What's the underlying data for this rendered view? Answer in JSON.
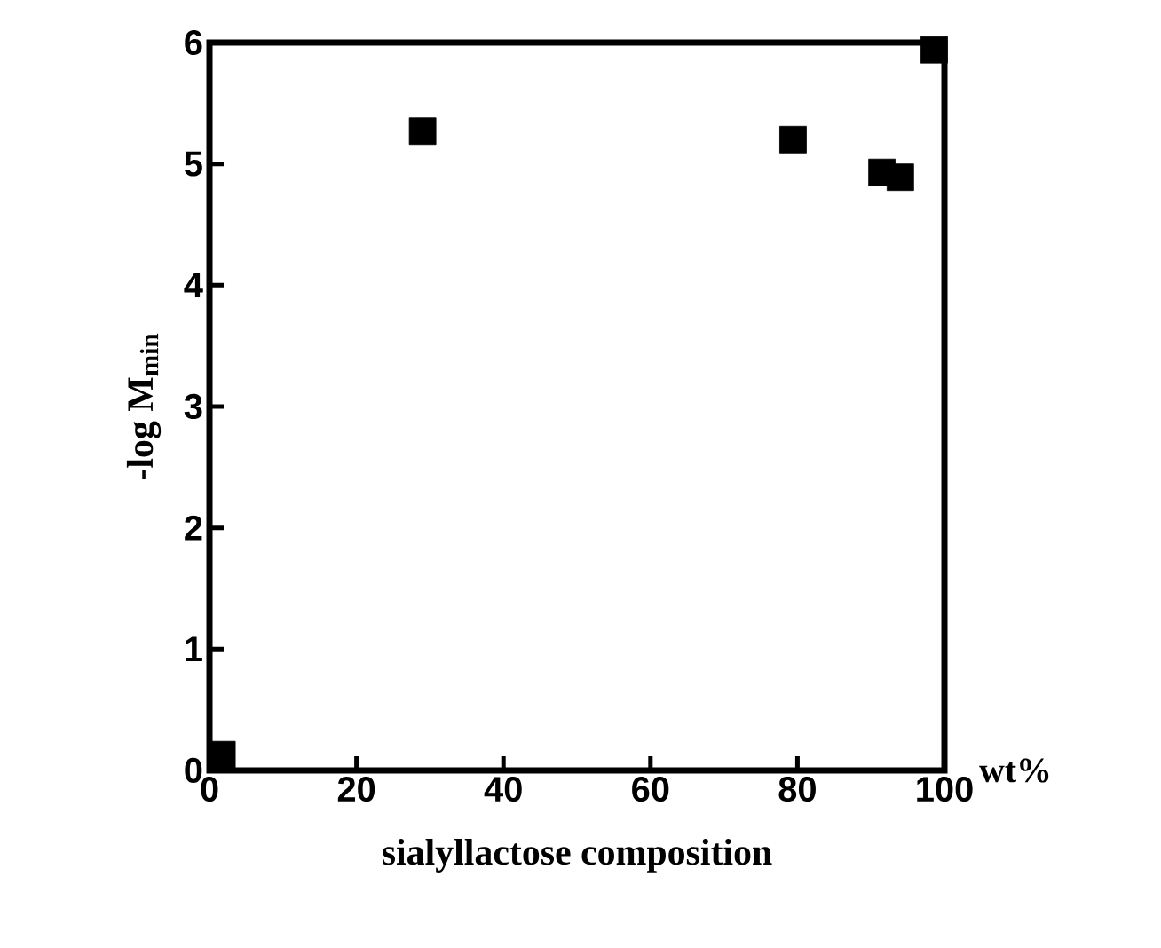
{
  "chart_data": {
    "type": "scatter",
    "xlabel": "sialyllactose composition",
    "ylabel": "-log M$_{min}$",
    "annotations": [
      "wt%"
    ],
    "x": [
      1.7,
      29,
      79.4,
      91.5,
      94,
      98.6
    ],
    "values": [
      0.13,
      5.27,
      5.2,
      4.93,
      4.89,
      5.94
    ],
    "color": "#000000",
    "marker": "square",
    "xlim": [
      0,
      100
    ],
    "ylim": [
      0,
      6
    ],
    "xticks": [
      0,
      20,
      40,
      60,
      80,
      100
    ],
    "yticks": [
      0,
      1,
      2,
      3,
      4,
      5,
      6
    ]
  }
}
